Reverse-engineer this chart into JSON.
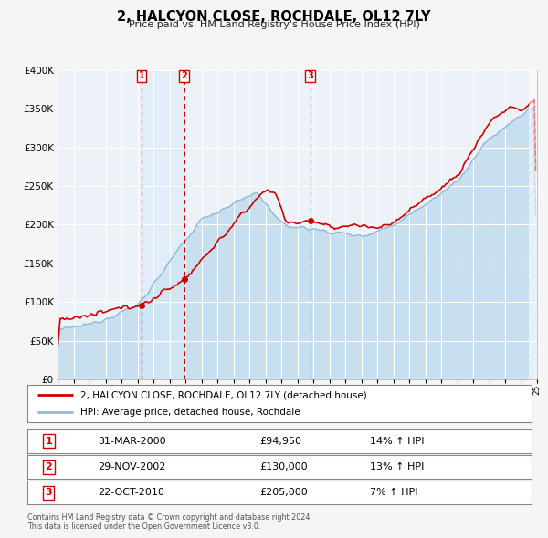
{
  "title": "2, HALCYON CLOSE, ROCHDALE, OL12 7LY",
  "subtitle": "Price paid vs. HM Land Registry's House Price Index (HPI)",
  "legend_line1": "2, HALCYON CLOSE, ROCHDALE, OL12 7LY (detached house)",
  "legend_line2": "HPI: Average price, detached house, Rochdale",
  "footer1": "Contains HM Land Registry data © Crown copyright and database right 2024.",
  "footer2": "This data is licensed under the Open Government Licence v3.0.",
  "sale_events": [
    {
      "num": 1,
      "date": "31-MAR-2000",
      "price": "£94,950",
      "change": "14% ↑ HPI",
      "year": 2000.25,
      "vline_style": "dashed_red"
    },
    {
      "num": 2,
      "date": "29-NOV-2002",
      "price": "£130,000",
      "change": "13% ↑ HPI",
      "year": 2002.92,
      "vline_style": "dashed_red"
    },
    {
      "num": 3,
      "date": "22-OCT-2010",
      "price": "£205,000",
      "change": "7% ↑ HPI",
      "year": 2010.8,
      "vline_style": "dashed_gray"
    }
  ],
  "sale_prices": [
    94950,
    130000,
    205000
  ],
  "sale_years": [
    2000.25,
    2002.92,
    2010.8
  ],
  "hpi_color": "#90b8d8",
  "hpi_fill_color": "#c8dff0",
  "price_color": "#cc0000",
  "vline_red_color": "#cc0000",
  "vline_gray_color": "#888888",
  "highlight_fill": "#d8eaf8",
  "bg_color": "#f5f5f5",
  "plot_bg": "#edf2f9",
  "ylim": [
    0,
    400000
  ],
  "yticks": [
    0,
    50000,
    100000,
    150000,
    200000,
    250000,
    300000,
    350000,
    400000
  ],
  "xmin": 1995,
  "xmax": 2025
}
